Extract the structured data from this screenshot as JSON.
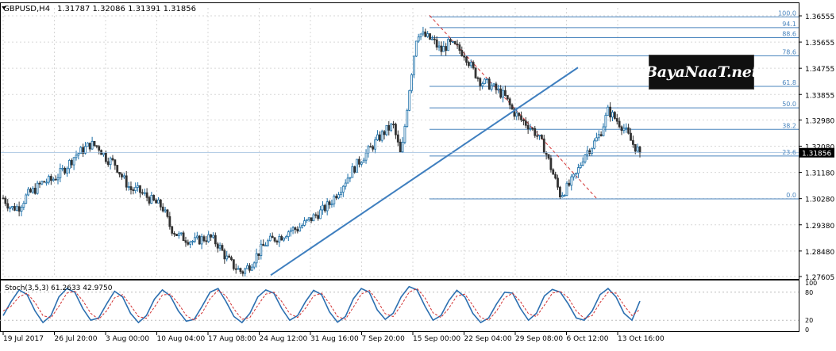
{
  "header": {
    "symbol": "GBPUSD,H4",
    "ohlc": "1.31787 1.32086 1.31391 1.31856"
  },
  "current_price": "1.31856",
  "stoch_label": "Stoch(3,5,3) 61.2633 42.9750",
  "logo_text": "BayaNaaT.net",
  "colors": {
    "up": "#1c6fa8",
    "down": "#333333",
    "trend": "#3f7fbf",
    "fib": "#4a85be",
    "grid": "#d7d7d7",
    "stoch_main": "#2c6fb0",
    "stoch_signal": "#d23232"
  },
  "chart_data": [
    {
      "type": "candlestick",
      "title": "GBPUSD,H4",
      "x_tick_labels": [
        "19 Jul 2017",
        "26 Jul 20:00",
        "3 Aug 00:00",
        "10 Aug 04:00",
        "17 Aug 08:00",
        "24 Aug 12:00",
        "31 Aug 16:00",
        "7 Sep 20:00",
        "15 Sep 00:00",
        "22 Sep 04:00",
        "29 Sep 08:00",
        "6 Oct 12:00",
        "13 Oct 16:00"
      ],
      "y_tick_labels": [
        "1.36555",
        "1.35655",
        "1.34755",
        "1.33855",
        "1.32980",
        "1.32080",
        "1.31180",
        "1.30280",
        "1.29380",
        "1.28480",
        "1.27605"
      ],
      "ylim": [
        1.27605,
        1.36555
      ],
      "fibonacci": {
        "high": 1.3652,
        "low": 1.3027,
        "levels": [
          {
            "label": "100.0",
            "ratio": 1.0
          },
          {
            "label": "94.1",
            "ratio": 0.941
          },
          {
            "label": "88.6",
            "ratio": 0.886
          },
          {
            "label": "78.6",
            "ratio": 0.786
          },
          {
            "label": "61.8",
            "ratio": 0.618
          },
          {
            "label": "50.0",
            "ratio": 0.5
          },
          {
            "label": "38.2",
            "ratio": 0.382
          },
          {
            "label": "23.6",
            "ratio": 0.236
          },
          {
            "label": "0.0",
            "ratio": 0.0
          }
        ]
      },
      "trendline": {
        "start": [
          1.2765
        ],
        "end": [
          1.3478
        ]
      },
      "close_path": [
        1.303,
        1.2995,
        1.3,
        1.304,
        1.306,
        1.3085,
        1.309,
        1.311,
        1.314,
        1.3175,
        1.3195,
        1.3215,
        1.3205,
        1.3165,
        1.315,
        1.31,
        1.306,
        1.3055,
        1.3035,
        1.3015,
        1.3,
        1.293,
        1.29,
        1.289,
        1.288,
        1.289,
        1.2895,
        1.287,
        1.2825,
        1.2795,
        1.2775,
        1.28,
        1.284,
        1.2875,
        1.289,
        1.29,
        1.292,
        1.2925,
        1.2945,
        1.2965,
        1.2985,
        1.301,
        1.305,
        1.309,
        1.313,
        1.3165,
        1.3195,
        1.323,
        1.326,
        1.328,
        1.317,
        1.34,
        1.36,
        1.3585,
        1.357,
        1.3535,
        1.356,
        1.3545,
        1.3525,
        1.347,
        1.343,
        1.342,
        1.34,
        1.338,
        1.333,
        1.33,
        1.328,
        1.325,
        1.32,
        1.312,
        1.304,
        1.307,
        1.311,
        1.318,
        1.321,
        1.325,
        1.333,
        1.33,
        1.327,
        1.322,
        1.3186
      ]
    },
    {
      "type": "line",
      "title": "Stoch(3,5,3) 61.2633 42.9750",
      "ylim": [
        0,
        100
      ],
      "y_tick_labels": [
        "100",
        "80",
        "20",
        "0"
      ],
      "series": [
        {
          "name": "main",
          "values": [
            30,
            60,
            85,
            75,
            40,
            15,
            30,
            70,
            88,
            80,
            45,
            20,
            25,
            55,
            82,
            70,
            35,
            15,
            30,
            65,
            85,
            72,
            40,
            18,
            22,
            50,
            80,
            88,
            60,
            28,
            15,
            35,
            70,
            85,
            78,
            45,
            20,
            30,
            60,
            84,
            75,
            38,
            16,
            28,
            66,
            88,
            80,
            42,
            22,
            35,
            70,
            92,
            85,
            50,
            20,
            30,
            62,
            84,
            70,
            35,
            15,
            25,
            55,
            80,
            78,
            45,
            20,
            35,
            72,
            86,
            80,
            55,
            25,
            20,
            40,
            75,
            88,
            70,
            35,
            20,
            61
          ]
        },
        {
          "name": "signal",
          "values": [
            40,
            50,
            70,
            78,
            58,
            30,
            25,
            50,
            78,
            82,
            62,
            35,
            22,
            40,
            68,
            75,
            52,
            28,
            24,
            48,
            74,
            76,
            56,
            30,
            20,
            36,
            66,
            84,
            72,
            44,
            22,
            26,
            52,
            76,
            80,
            60,
            34,
            26,
            46,
            72,
            78,
            56,
            28,
            22,
            48,
            76,
            84,
            62,
            34,
            28,
            52,
            80,
            88,
            68,
            36,
            26,
            46,
            72,
            76,
            52,
            26,
            20,
            40,
            68,
            78,
            60,
            34,
            28,
            52,
            78,
            82,
            68,
            40,
            24,
            30,
            58,
            80,
            78,
            52,
            30,
            43
          ]
        }
      ]
    }
  ]
}
